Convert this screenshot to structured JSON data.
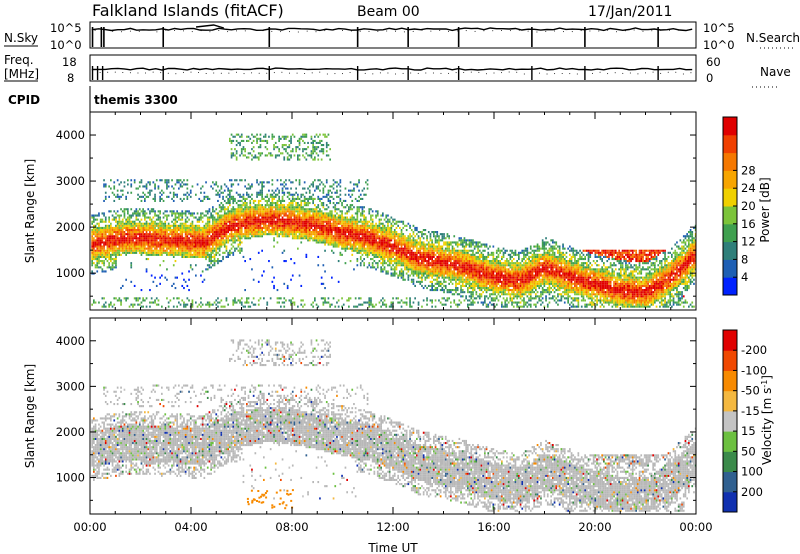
{
  "header": {
    "title": "Falkland Islands (fitACF)",
    "beam": "Beam 00",
    "date": "17/Jan/2011"
  },
  "strips": {
    "nsky_label": "N.Sky",
    "nsky_ticks": [
      "10^5",
      "10^0"
    ],
    "nsearch_label": "N.Search",
    "nsearch_ticks": [
      "10^5",
      "10^0"
    ],
    "freq_label_line1": "Freq.",
    "freq_label_line2": "[MHz]",
    "freq_ticks": [
      "18",
      "8"
    ],
    "nave_label": "Nave",
    "nave_ticks": [
      "60",
      "0"
    ],
    "cpid_label": "CPID",
    "cpid_value": "themis 3300"
  },
  "chart_data": [
    {
      "type": "heatmap",
      "name": "power-panel",
      "ylabel": "Slant Range [km]",
      "yticks": [
        1000,
        2000,
        3000,
        4000
      ],
      "ytick_labels": [
        "1000",
        "2000",
        "3000",
        "4000"
      ],
      "ylim": [
        200,
        4500
      ],
      "xlim_hours": [
        0,
        24
      ],
      "colorbar": {
        "label": "Power [dB]",
        "ticks": [
          "4",
          "8",
          "12",
          "16",
          "20",
          "24",
          "28"
        ],
        "colors": [
          "#0022ff",
          "#1e5fb4",
          "#2f7f7a",
          "#3fa04f",
          "#7cc43a",
          "#f0d000",
          "#f7a500",
          "#f57800",
          "#f04000",
          "#e00000"
        ]
      }
    },
    {
      "type": "heatmap",
      "name": "velocity-panel",
      "ylabel": "Slant Range [km]",
      "yticks": [
        1000,
        2000,
        3000,
        4000
      ],
      "ytick_labels": [
        "1000",
        "2000",
        "3000",
        "4000"
      ],
      "ylim": [
        200,
        4500
      ],
      "xlim_hours": [
        0,
        24
      ],
      "xticks": [
        "00:00",
        "04:00",
        "08:00",
        "12:00",
        "16:00",
        "20:00",
        "00:00"
      ],
      "xlabel": "Time UT",
      "colorbar": {
        "label_main": "Velocity [m s",
        "label_exp": "-1",
        "label_end": "]",
        "ticks": [
          "200",
          "100",
          "50",
          "15",
          "-15",
          "-50",
          "-100",
          "-200"
        ],
        "colors": [
          "#1030b0",
          "#306090",
          "#3a8a4a",
          "#6cc040",
          "#c4c4c4",
          "#f4b840",
          "#f78a00",
          "#f04800",
          "#e00000"
        ]
      }
    }
  ],
  "colors": {
    "ground_scatter": "#b8b8b8",
    "axis": "#000000"
  }
}
